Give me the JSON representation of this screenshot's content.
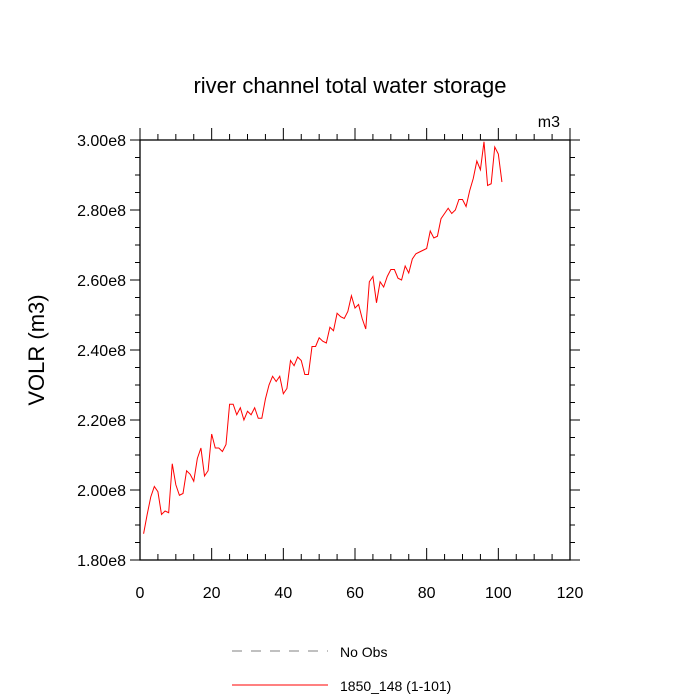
{
  "chart_data": {
    "type": "line",
    "title": "river channel total water storage",
    "units_label": "m3",
    "ylabel": "VOLR  (m3)",
    "xlabel": "",
    "xlim": [
      0,
      120
    ],
    "ylim": [
      180000000.0,
      300000000.0
    ],
    "x_ticks": [
      0,
      20,
      40,
      60,
      80,
      100,
      120
    ],
    "x_tick_labels": [
      "0",
      "20",
      "40",
      "60",
      "80",
      "100",
      "120"
    ],
    "y_ticks": [
      180000000.0,
      200000000.0,
      220000000.0,
      240000000.0,
      260000000.0,
      280000000.0,
      300000000.0
    ],
    "y_tick_labels": [
      "1.80e8",
      "2.00e8",
      "2.20e8",
      "2.40e8",
      "2.60e8",
      "2.80e8",
      "3.00e8"
    ],
    "grid": false,
    "legend_position": "bottom",
    "legend": [
      {
        "label": "No Obs",
        "color": "#808080",
        "style": "dashed"
      },
      {
        "label": "1850_148 (1-101)",
        "color": "#ff0000",
        "style": "solid"
      }
    ],
    "series": [
      {
        "name": "1850_148 (1-101)",
        "color": "#ff0000",
        "x_start": 1,
        "values_e8": [
          1.875,
          1.93,
          1.98,
          2.01,
          1.995,
          1.93,
          1.94,
          1.935,
          2.075,
          2.015,
          1.985,
          1.99,
          2.055,
          2.045,
          2.025,
          2.09,
          2.12,
          2.04,
          2.055,
          2.16,
          2.12,
          2.12,
          2.11,
          2.13,
          2.245,
          2.245,
          2.215,
          2.235,
          2.2,
          2.225,
          2.215,
          2.235,
          2.205,
          2.205,
          2.26,
          2.3,
          2.325,
          2.31,
          2.325,
          2.275,
          2.29,
          2.37,
          2.355,
          2.38,
          2.37,
          2.33,
          2.33,
          2.41,
          2.41,
          2.435,
          2.425,
          2.42,
          2.465,
          2.455,
          2.505,
          2.495,
          2.49,
          2.51,
          2.555,
          2.52,
          2.53,
          2.49,
          2.46,
          2.595,
          2.61,
          2.535,
          2.595,
          2.58,
          2.61,
          2.63,
          2.63,
          2.605,
          2.6,
          2.64,
          2.62,
          2.66,
          2.675,
          2.68,
          2.685,
          2.69,
          2.74,
          2.72,
          2.725,
          2.775,
          2.79,
          2.805,
          2.79,
          2.8,
          2.83,
          2.83,
          2.81,
          2.855,
          2.89,
          2.94,
          2.915,
          2.995,
          2.87,
          2.875,
          2.98,
          2.96,
          2.88
        ]
      }
    ]
  }
}
